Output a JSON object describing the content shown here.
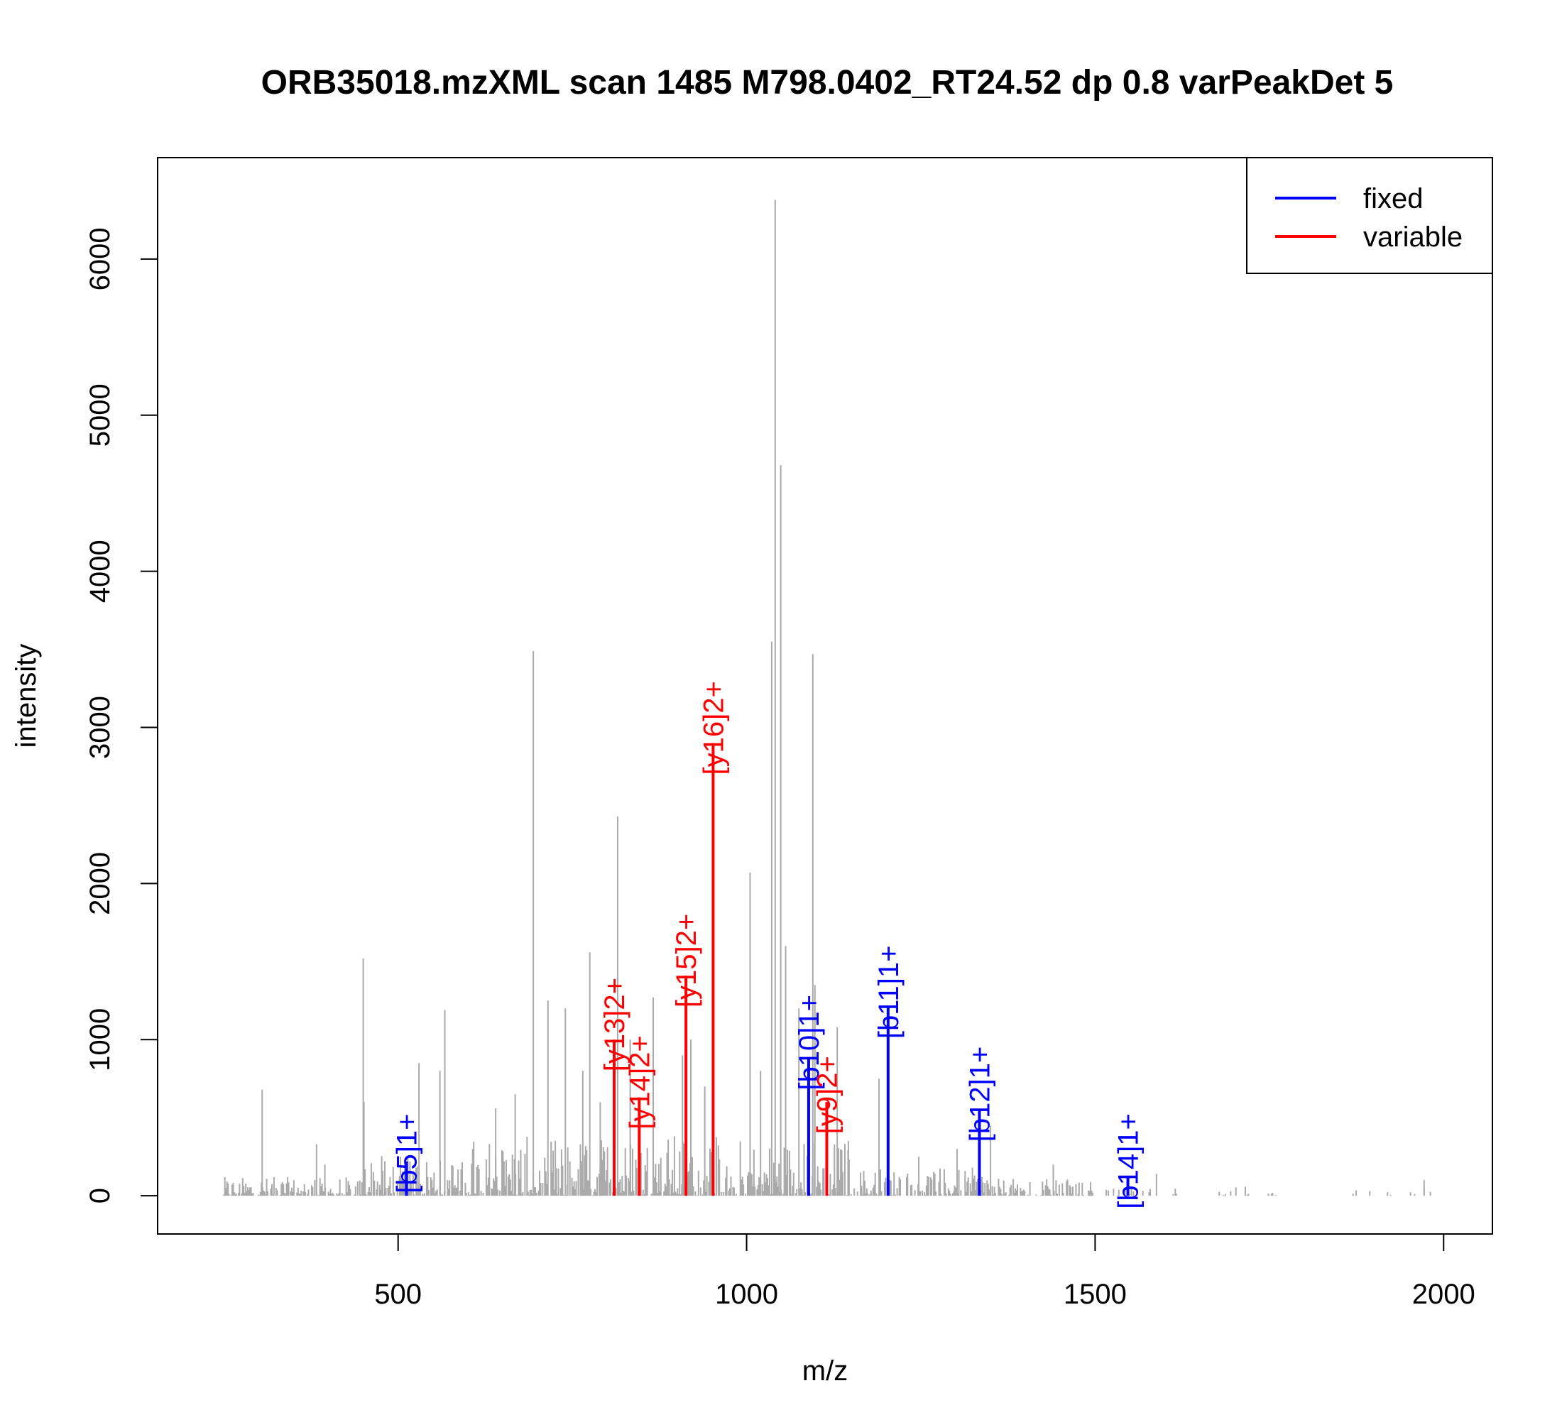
{
  "chart_data": {
    "type": "bar",
    "title": "ORB35018.mzXML scan 1485 M798.0402_RT24.52 dp 0.8 varPeakDet 5",
    "xlabel": "m/z",
    "ylabel": "intensity",
    "xlim": [
      155,
      2070
    ],
    "ylim": [
      -245,
      6650
    ],
    "xticks": [
      500,
      1000,
      1500,
      2000
    ],
    "yticks": [
      0,
      1000,
      2000,
      3000,
      4000,
      5000,
      6000
    ],
    "grid": false,
    "legend": {
      "position": "top-right",
      "entries": [
        {
          "label": "fixed",
          "color": "#0000ff"
        },
        {
          "label": "variable",
          "color": "#ff0000"
        }
      ]
    },
    "colors": {
      "background_peaks": "#aaaaaa",
      "fixed": "#0000ff",
      "variable": "#ff0000"
    },
    "background_peaks": [
      {
        "mz": 305,
        "intensity": 680
      },
      {
        "mz": 383,
        "intensity": 330
      },
      {
        "mz": 395,
        "intensity": 200
      },
      {
        "mz": 450,
        "intensity": 1520
      },
      {
        "mz": 451,
        "intensity": 600
      },
      {
        "mz": 530,
        "intensity": 850
      },
      {
        "mz": 560,
        "intensity": 800
      },
      {
        "mz": 567,
        "intensity": 1190
      },
      {
        "mz": 640,
        "intensity": 560
      },
      {
        "mz": 668,
        "intensity": 650
      },
      {
        "mz": 694,
        "intensity": 3490
      },
      {
        "mz": 715,
        "intensity": 1250
      },
      {
        "mz": 740,
        "intensity": 1200
      },
      {
        "mz": 765,
        "intensity": 800
      },
      {
        "mz": 775,
        "intensity": 1560
      },
      {
        "mz": 790,
        "intensity": 600
      },
      {
        "mz": 815,
        "intensity": 2430
      },
      {
        "mz": 833,
        "intensity": 1000
      },
      {
        "mz": 866,
        "intensity": 1270
      },
      {
        "mz": 908,
        "intensity": 900
      },
      {
        "mz": 920,
        "intensity": 1000
      },
      {
        "mz": 940,
        "intensity": 700
      },
      {
        "mz": 1005,
        "intensity": 2070
      },
      {
        "mz": 1020,
        "intensity": 800
      },
      {
        "mz": 1036,
        "intensity": 3550
      },
      {
        "mz": 1041,
        "intensity": 6380
      },
      {
        "mz": 1049,
        "intensity": 4680
      },
      {
        "mz": 1056,
        "intensity": 1600
      },
      {
        "mz": 1075,
        "intensity": 1200
      },
      {
        "mz": 1095,
        "intensity": 3470
      },
      {
        "mz": 1098,
        "intensity": 1350
      },
      {
        "mz": 1130,
        "intensity": 1080
      },
      {
        "mz": 1146,
        "intensity": 350
      },
      {
        "mz": 1190,
        "intensity": 750
      },
      {
        "mz": 1247,
        "intensity": 250
      },
      {
        "mz": 1302,
        "intensity": 300
      },
      {
        "mz": 1350,
        "intensity": 450
      },
      {
        "mz": 1440,
        "intensity": 200
      },
      {
        "mz": 1588,
        "intensity": 140
      },
      {
        "mz": 1972,
        "intensity": 100
      }
    ],
    "annotations": [
      {
        "label": "[b5]1+",
        "mz": 512,
        "intensity": 220,
        "type": "fixed"
      },
      {
        "label": "[y13]2+",
        "mz": 810,
        "intensity": 1000,
        "type": "variable"
      },
      {
        "label": "[y14]2+",
        "mz": 846,
        "intensity": 630,
        "type": "variable"
      },
      {
        "label": "[y15]2+",
        "mz": 913,
        "intensity": 1410,
        "type": "variable"
      },
      {
        "label": "[y16]2+",
        "mz": 952,
        "intensity": 2900,
        "type": "variable"
      },
      {
        "label": "[b10]1+",
        "mz": 1089,
        "intensity": 880,
        "type": "fixed"
      },
      {
        "label": "[y9]2+",
        "mz": 1115,
        "intensity": 600,
        "type": "variable"
      },
      {
        "label": "[b11]1+",
        "mz": 1203,
        "intensity": 1210,
        "type": "fixed"
      },
      {
        "label": "[b12]1+",
        "mz": 1334,
        "intensity": 550,
        "type": "fixed"
      },
      {
        "label": "[b14]1+",
        "mz": 1547,
        "intensity": 120,
        "type": "fixed"
      }
    ]
  }
}
